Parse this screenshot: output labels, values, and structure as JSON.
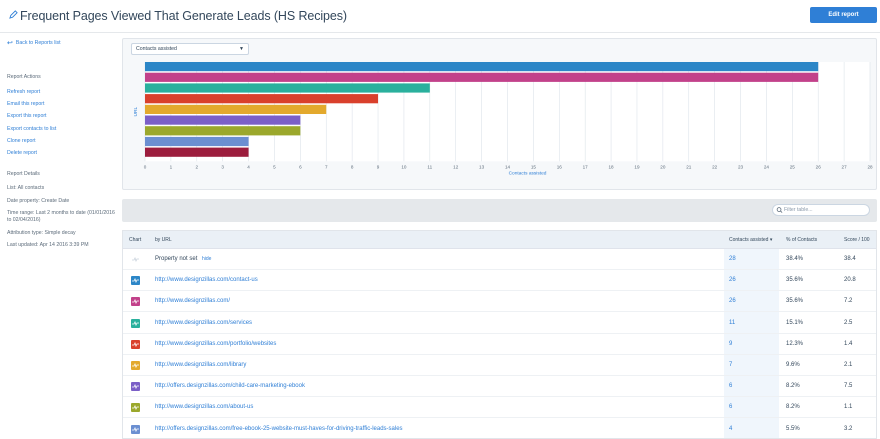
{
  "header": {
    "title": "Frequent Pages Viewed That Generate Leads (HS Recipes)",
    "edit_button": "Edit report"
  },
  "sidebar": {
    "back_link": "Back to Reports list",
    "actions_heading": "Report Actions",
    "actions": [
      "Refresh report",
      "Email this report",
      "Export this report",
      "Export contacts to list",
      "Clone report",
      "Delete report"
    ],
    "details_heading": "Report Details",
    "details": [
      "List: All contacts",
      "Date property: Create Date",
      "Time range: Last 2 months to date (01/01/2016 to 02/04/2016)",
      "Attribution type: Simple decay",
      "Last updated: Apr 14 2016 3:39 PM"
    ]
  },
  "chart_controls": {
    "metric_select": "Contacts assisted"
  },
  "chart_data": {
    "type": "bar",
    "orientation": "horizontal",
    "ylabel": "URL",
    "xlabel": "Contacts assisted",
    "xlim": [
      0,
      28
    ],
    "xticks": [
      "0",
      "1",
      "2",
      "3",
      "4",
      "5",
      "6",
      "7",
      "8",
      "9",
      "10",
      "11",
      "12",
      "13",
      "14",
      "15",
      "16",
      "17",
      "18",
      "19",
      "20",
      "21",
      "22",
      "23",
      "24",
      "25",
      "26",
      "27",
      "28"
    ],
    "grid": true,
    "values": [
      26,
      26,
      11,
      9,
      7,
      6,
      6,
      4,
      4
    ],
    "colors": [
      "#2c86c7",
      "#c2418a",
      "#2ab09d",
      "#d9402c",
      "#e3a92d",
      "#7b5fc7",
      "#9ba82c",
      "#6b8fd1",
      "#9c1d3d"
    ]
  },
  "filter": {
    "placeholder": "Filter table..."
  },
  "table": {
    "columns": {
      "chart": "Chart",
      "url": "by URL",
      "contacts": "Contacts assisted",
      "percent": "% of Contacts",
      "score": "Score / 100"
    },
    "sort_indicator": "▾",
    "hide_label": "hide",
    "rows": [
      {
        "url": "Property not set",
        "contacts": "28",
        "percent": "38.4%",
        "score": "38.4",
        "color": "",
        "is_link": false
      },
      {
        "url": "http://www.designzillas.com/contact-us",
        "contacts": "26",
        "percent": "35.6%",
        "score": "20.8",
        "color": "#2c86c7",
        "is_link": true
      },
      {
        "url": "http://www.designzillas.com/",
        "contacts": "26",
        "percent": "35.6%",
        "score": "7.2",
        "color": "#c2418a",
        "is_link": true
      },
      {
        "url": "http://www.designzillas.com/services",
        "contacts": "11",
        "percent": "15.1%",
        "score": "2.5",
        "color": "#2ab09d",
        "is_link": true
      },
      {
        "url": "http://www.designzillas.com/portfolio/websites",
        "contacts": "9",
        "percent": "12.3%",
        "score": "1.4",
        "color": "#d9402c",
        "is_link": true
      },
      {
        "url": "http://www.designzillas.com/library",
        "contacts": "7",
        "percent": "9.6%",
        "score": "2.1",
        "color": "#e3a92d",
        "is_link": true
      },
      {
        "url": "http://offers.designzillas.com/child-care-marketing-ebook",
        "contacts": "6",
        "percent": "8.2%",
        "score": "7.5",
        "color": "#7b5fc7",
        "is_link": true
      },
      {
        "url": "http://www.designzillas.com/about-us",
        "contacts": "6",
        "percent": "8.2%",
        "score": "1.1",
        "color": "#9ba82c",
        "is_link": true
      },
      {
        "url": "http://offers.designzillas.com/free-ebook-25-website-must-haves-for-driving-traffic-leads-sales",
        "contacts": "4",
        "percent": "5.5%",
        "score": "3.2",
        "color": "#6b8fd1",
        "is_link": true
      }
    ]
  }
}
